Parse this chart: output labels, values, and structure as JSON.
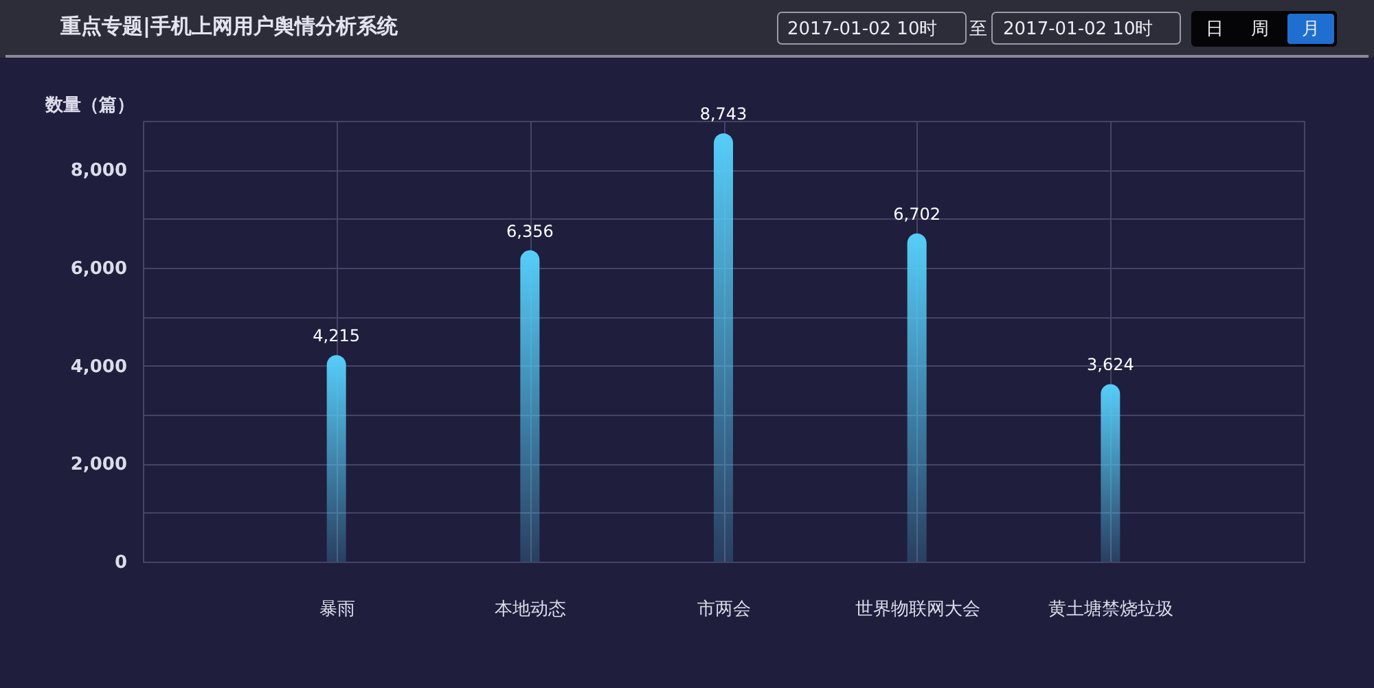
{
  "chart_data": {
    "type": "bar",
    "title": "重点专题|手机上网用户舆情分析系统",
    "ylabel": "数量（篇）",
    "categories": [
      "暴雨",
      "本地动态",
      "市两会",
      "世界物联网大会",
      "黄土塘禁烧垃圾"
    ],
    "values": [
      4215,
      6356,
      8743,
      6702,
      3624
    ],
    "value_labels": [
      "4,215",
      "6,356",
      "8,743",
      "6,702",
      "3,624"
    ],
    "color": "#56cdf8",
    "ylim": [
      0,
      9000
    ],
    "yticks": [
      0,
      {
        "value": 1000,
        "label": null
      },
      {
        "value": 2000,
        "label": "2,000"
      },
      {
        "value": 3000,
        "label": null
      },
      {
        "value": 4000,
        "label": "4,000"
      },
      {
        "value": 5000,
        "label": null
      },
      {
        "value": 6000,
        "label": "6,000"
      },
      {
        "value": 7000,
        "label": null
      },
      {
        "value": 8000,
        "label": "8,000"
      }
    ],
    "grid": true,
    "annotations": [
      "2017-01-02 10时",
      "至",
      "2017-01-02 10时",
      "日",
      "周",
      "月"
    ]
  }
}
